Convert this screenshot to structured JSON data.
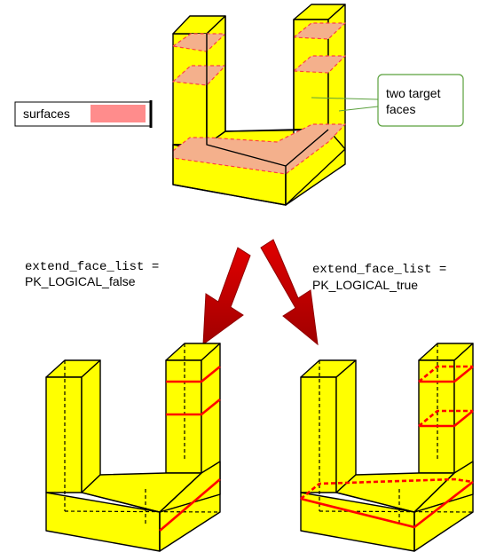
{
  "legend": {
    "label": "surfaces",
    "swatch_color": "#ff8c8c"
  },
  "callout": {
    "line1": "two target",
    "line2": "faces"
  },
  "cases": {
    "false": {
      "param": "extend_face_list =",
      "value": "PK_LOGICAL_false"
    },
    "true": {
      "param": "extend_face_list =",
      "value": "PK_LOGICAL_true"
    }
  },
  "colors": {
    "body_yellow": "#ffff00",
    "surface_pink": "#f4b08c",
    "edge_red": "#ff0000",
    "arrow_red": "#c00000",
    "callout_border": "#5aa03c"
  }
}
